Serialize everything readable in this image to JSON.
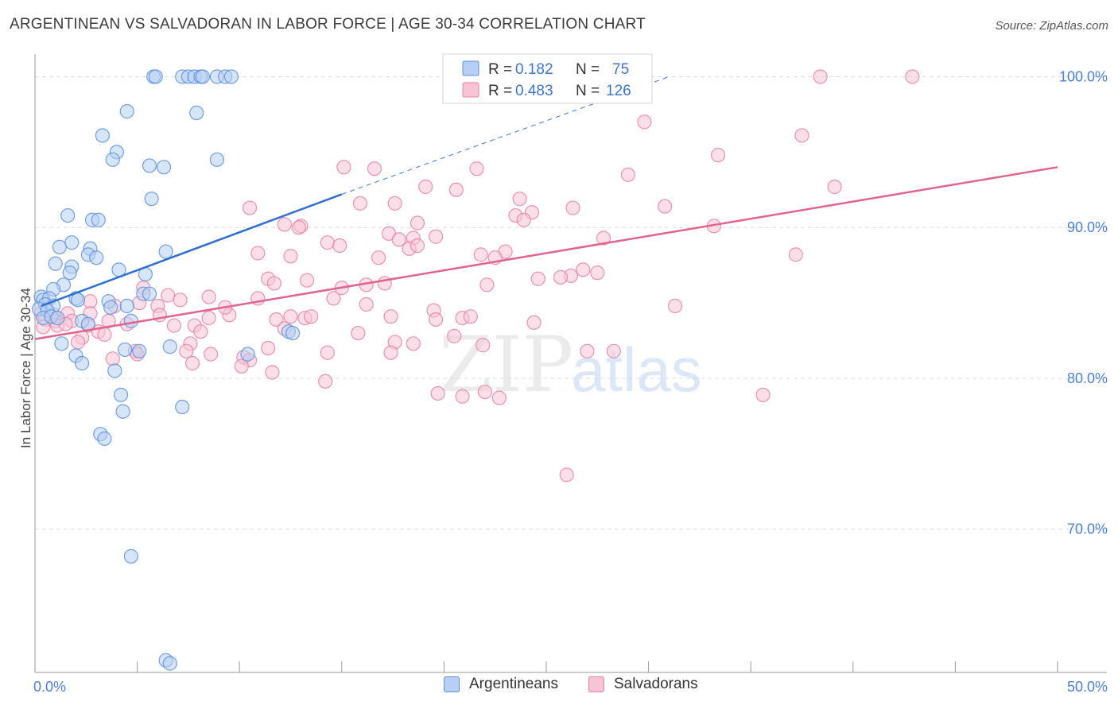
{
  "title": "ARGENTINEAN VS SALVADORAN IN LABOR FORCE | AGE 30-34 CORRELATION CHART",
  "source": "Source: ZipAtlas.com",
  "watermark": {
    "zip": "ZIP",
    "atlas": "atlas"
  },
  "colors": {
    "blue": "#5b8fde",
    "blue_fill": "#b7cff2",
    "blue_line": "#2f6fcf",
    "pink": "#e880a3",
    "pink_fill": "#f7c4d5",
    "pink_line": "#e0648e",
    "tick_label": "#4a7fd4",
    "grid": "#dcdcdc",
    "axis": "#9a9a9a"
  },
  "legend_box": {
    "rows": [
      {
        "r_label": "R =",
        "r_value": "0.182",
        "n_label": "N =",
        "n_value": "75",
        "series": "blue"
      },
      {
        "r_label": "R =",
        "r_value": "0.483",
        "n_label": "N =",
        "n_value": "126",
        "series": "pink"
      }
    ]
  },
  "chart_data": {
    "type": "scatter",
    "title": "ARGENTINEAN VS SALVADORAN IN LABOR FORCE | AGE 30-34 CORRELATION CHART",
    "ylabel": "In Labor Force | Age 30-34",
    "xlabel": "",
    "xlim": [
      0,
      50
    ],
    "ylim": [
      60.5,
      101.5
    ],
    "x_tick_labels": [
      "0.0%",
      "50.0%"
    ],
    "y_ticks": [
      70,
      80,
      90,
      100
    ],
    "y_tick_labels": [
      "70.0%",
      "80.0%",
      "90.0%",
      "100.0%"
    ],
    "grid": true,
    "legend": [
      "Argentineans",
      "Salvadorans"
    ],
    "series": [
      {
        "name": "Argentineans",
        "color": "blue",
        "r": 0.182,
        "n": 75,
        "trend": {
          "x0": 0.3,
          "y0": 84.8,
          "x1": 15,
          "y1": 92.2,
          "dashed_to_x": 31,
          "dashed_to_y": 100.0
        },
        "points": [
          [
            5.8,
            100
          ],
          [
            5.9,
            100
          ],
          [
            7.2,
            100
          ],
          [
            7.5,
            100
          ],
          [
            7.8,
            100
          ],
          [
            8.1,
            100
          ],
          [
            8.2,
            100
          ],
          [
            8.9,
            100
          ],
          [
            9.3,
            100
          ],
          [
            9.6,
            100
          ],
          [
            4.5,
            97.7
          ],
          [
            7.9,
            97.6
          ],
          [
            3.3,
            96.1
          ],
          [
            4.0,
            95.0
          ],
          [
            3.8,
            94.5
          ],
          [
            8.9,
            94.5
          ],
          [
            5.6,
            94.1
          ],
          [
            6.3,
            94.0
          ],
          [
            5.7,
            91.9
          ],
          [
            1.6,
            90.8
          ],
          [
            2.8,
            90.5
          ],
          [
            3.1,
            90.5
          ],
          [
            1.8,
            89.0
          ],
          [
            1.2,
            88.7
          ],
          [
            2.7,
            88.6
          ],
          [
            2.6,
            88.2
          ],
          [
            6.4,
            88.4
          ],
          [
            3.0,
            88.0
          ],
          [
            1.0,
            87.6
          ],
          [
            1.8,
            87.4
          ],
          [
            1.7,
            87.0
          ],
          [
            4.1,
            87.2
          ],
          [
            5.4,
            86.9
          ],
          [
            1.4,
            86.2
          ],
          [
            0.9,
            85.9
          ],
          [
            5.3,
            85.6
          ],
          [
            5.6,
            85.6
          ],
          [
            0.3,
            85.4
          ],
          [
            0.4,
            85.2
          ],
          [
            0.7,
            85.3
          ],
          [
            0.5,
            84.9
          ],
          [
            0.9,
            84.8
          ],
          [
            0.2,
            84.6
          ],
          [
            0.6,
            84.5
          ],
          [
            2.0,
            85.3
          ],
          [
            2.1,
            85.2
          ],
          [
            3.6,
            85.1
          ],
          [
            3.7,
            84.7
          ],
          [
            4.5,
            84.8
          ],
          [
            0.4,
            84.0
          ],
          [
            0.8,
            84.1
          ],
          [
            1.1,
            84.0
          ],
          [
            2.3,
            83.8
          ],
          [
            2.6,
            83.6
          ],
          [
            4.7,
            83.8
          ],
          [
            12.4,
            83.1
          ],
          [
            12.6,
            83.0
          ],
          [
            1.3,
            82.3
          ],
          [
            4.4,
            81.9
          ],
          [
            5.1,
            81.8
          ],
          [
            6.6,
            82.1
          ],
          [
            10.4,
            81.6
          ],
          [
            2.0,
            81.5
          ],
          [
            2.3,
            81.0
          ],
          [
            3.9,
            80.5
          ],
          [
            4.2,
            78.9
          ],
          [
            7.2,
            78.1
          ],
          [
            4.3,
            77.8
          ],
          [
            3.2,
            76.3
          ],
          [
            3.4,
            76.0
          ],
          [
            4.7,
            68.2
          ],
          [
            6.4,
            61.3
          ],
          [
            6.6,
            61.1
          ]
        ]
      },
      {
        "name": "Salvadorans",
        "color": "pink",
        "r": 0.483,
        "n": 126,
        "trend": {
          "x0": 0,
          "y0": 82.6,
          "x1": 50,
          "y1": 94.0
        },
        "points": [
          [
            38.4,
            100
          ],
          [
            42.9,
            100
          ],
          [
            29.8,
            97.0
          ],
          [
            37.5,
            96.1
          ],
          [
            33.4,
            94.8
          ],
          [
            15.1,
            94.0
          ],
          [
            16.6,
            93.9
          ],
          [
            21.6,
            93.9
          ],
          [
            29.0,
            93.5
          ],
          [
            19.1,
            92.7
          ],
          [
            20.6,
            92.5
          ],
          [
            39.1,
            92.7
          ],
          [
            23.7,
            91.9
          ],
          [
            15.9,
            91.6
          ],
          [
            17.6,
            91.6
          ],
          [
            26.3,
            91.3
          ],
          [
            24.3,
            91.0
          ],
          [
            30.8,
            91.4
          ],
          [
            10.5,
            91.3
          ],
          [
            23.5,
            90.8
          ],
          [
            23.9,
            90.5
          ],
          [
            18.7,
            90.3
          ],
          [
            12.2,
            90.2
          ],
          [
            13.0,
            90.1
          ],
          [
            33.2,
            90.1
          ],
          [
            12.9,
            90.0
          ],
          [
            17.3,
            89.6
          ],
          [
            18.5,
            89.3
          ],
          [
            17.8,
            89.2
          ],
          [
            27.8,
            89.3
          ],
          [
            19.6,
            89.4
          ],
          [
            14.3,
            89.0
          ],
          [
            14.9,
            88.8
          ],
          [
            18.3,
            88.6
          ],
          [
            18.7,
            88.8
          ],
          [
            23.0,
            88.4
          ],
          [
            21.8,
            88.2
          ],
          [
            10.9,
            88.3
          ],
          [
            12.5,
            88.1
          ],
          [
            16.8,
            88.0
          ],
          [
            37.2,
            88.2
          ],
          [
            22.5,
            88.0
          ],
          [
            26.8,
            87.2
          ],
          [
            26.2,
            86.8
          ],
          [
            25.7,
            86.7
          ],
          [
            27.5,
            87.0
          ],
          [
            11.4,
            86.6
          ],
          [
            13.3,
            86.5
          ],
          [
            11.7,
            86.3
          ],
          [
            17.1,
            86.3
          ],
          [
            22.1,
            86.2
          ],
          [
            24.6,
            86.6
          ],
          [
            15.0,
            86.0
          ],
          [
            16.2,
            86.2
          ],
          [
            8.5,
            85.4
          ],
          [
            10.9,
            85.3
          ],
          [
            6.5,
            85.5
          ],
          [
            2.7,
            85.1
          ],
          [
            7.1,
            85.2
          ],
          [
            14.6,
            85.3
          ],
          [
            3.9,
            84.8
          ],
          [
            5.1,
            85.0
          ],
          [
            6.0,
            84.8
          ],
          [
            16.2,
            84.9
          ],
          [
            31.3,
            84.8
          ],
          [
            19.5,
            84.5
          ],
          [
            0.3,
            84.3
          ],
          [
            0.9,
            84.2
          ],
          [
            1.6,
            84.3
          ],
          [
            2.7,
            84.3
          ],
          [
            6.1,
            84.2
          ],
          [
            9.5,
            84.2
          ],
          [
            12.5,
            84.1
          ],
          [
            13.2,
            84.0
          ],
          [
            13.5,
            84.1
          ],
          [
            17.4,
            84.1
          ],
          [
            20.9,
            84.0
          ],
          [
            21.3,
            84.1
          ],
          [
            0.5,
            83.9
          ],
          [
            1.0,
            83.8
          ],
          [
            1.8,
            83.8
          ],
          [
            3.6,
            83.8
          ],
          [
            4.5,
            83.6
          ],
          [
            8.5,
            84.0
          ],
          [
            11.8,
            83.9
          ],
          [
            19.6,
            83.9
          ],
          [
            24.4,
            83.7
          ],
          [
            0.4,
            83.4
          ],
          [
            1.1,
            83.5
          ],
          [
            1.5,
            83.6
          ],
          [
            2.6,
            83.5
          ],
          [
            6.8,
            83.5
          ],
          [
            7.8,
            83.5
          ],
          [
            8.1,
            83.1
          ],
          [
            12.2,
            83.3
          ],
          [
            15.8,
            83.0
          ],
          [
            3.1,
            83.1
          ],
          [
            3.4,
            82.9
          ],
          [
            2.3,
            82.7
          ],
          [
            2.1,
            82.4
          ],
          [
            20.5,
            82.8
          ],
          [
            17.6,
            82.4
          ],
          [
            18.5,
            82.3
          ],
          [
            21.9,
            82.2
          ],
          [
            7.6,
            82.3
          ],
          [
            4.9,
            81.8
          ],
          [
            5.0,
            81.6
          ],
          [
            7.4,
            81.8
          ],
          [
            8.6,
            81.6
          ],
          [
            11.4,
            82.0
          ],
          [
            14.3,
            81.7
          ],
          [
            17.4,
            81.7
          ],
          [
            27.0,
            81.8
          ],
          [
            28.3,
            81.8
          ],
          [
            3.8,
            81.3
          ],
          [
            10.2,
            81.4
          ],
          [
            10.5,
            81.2
          ],
          [
            7.7,
            81.0
          ],
          [
            10.1,
            80.8
          ],
          [
            11.6,
            80.4
          ],
          [
            14.2,
            79.8
          ],
          [
            19.7,
            79.0
          ],
          [
            20.9,
            78.8
          ],
          [
            22.0,
            79.1
          ],
          [
            22.7,
            78.7
          ],
          [
            35.6,
            78.9
          ],
          [
            26.0,
            73.6
          ],
          [
            5.3,
            86.0
          ],
          [
            9.3,
            84.7
          ]
        ]
      }
    ]
  }
}
